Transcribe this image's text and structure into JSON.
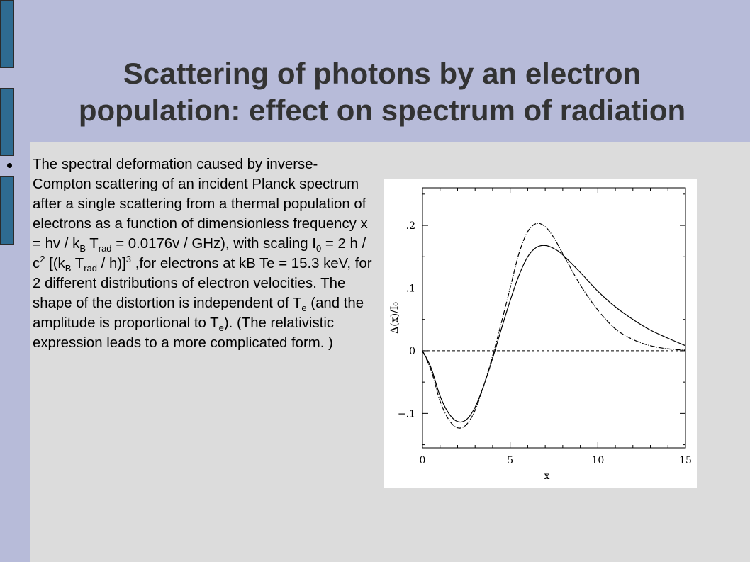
{
  "slide": {
    "title_line1": "Scattering of photons by an electron",
    "title_line2": "population: effect on spectrum of radiation"
  },
  "body_text": {
    "t1": "The spectral deformation caused by inverse-Compton scattering of an incident Planck spectrum after a single scattering from a thermal population of electrons as a function of dimensionless frequency x = hv / k",
    "sub1": "B",
    "t2": " T",
    "sub2": "rad",
    "t3": " = 0.0176v / GHz), with scaling I",
    "sub3": "0",
    "t4": " = 2 h / c",
    "sup1": "2",
    "t5": " [(k",
    "sub4": "B",
    "t6": " T",
    "sub5": "rad",
    "t7": " / h)]",
    "sup2": "3",
    "t8": " ,for electrons at kB Te = 15.3 keV, for 2 different distributions of electron velocities. The shape of the distortion is independent of T",
    "sub6": "e",
    "t9": " (and the amplitude is proportional to T",
    "sub7": "e",
    "t10": "). (The relativistic expression leads to a more complicated form. )"
  },
  "colors": {
    "title_band": "#b7bbd9",
    "content_bg": "#dcdcdc",
    "deco_bar": "#2e6b91",
    "title_text": "#333333"
  },
  "chart_data": {
    "type": "line",
    "xlabel": "x",
    "ylabel": "Δ(x)/I₀",
    "xlim": [
      0,
      15
    ],
    "ylim": [
      -0.155,
      0.26
    ],
    "x_ticks": [
      0,
      5,
      10,
      15
    ],
    "x_tick_labels": [
      "0",
      "5",
      "10",
      "15"
    ],
    "y_ticks": [
      -0.1,
      0,
      0.1,
      0.2
    ],
    "y_tick_labels": [
      "−.1",
      "0",
      ".1",
      ".2"
    ],
    "reference_line": {
      "y": 0,
      "style": "dashed"
    },
    "series": [
      {
        "style": "solid",
        "x": [
          0,
          0.5,
          1,
          1.5,
          2,
          2.5,
          3,
          3.5,
          4,
          4.5,
          5,
          5.5,
          6,
          6.5,
          7,
          7.5,
          8,
          9,
          10,
          11,
          12,
          13,
          14,
          15
        ],
        "y": [
          0,
          -0.028,
          -0.072,
          -0.1,
          -0.113,
          -0.11,
          -0.09,
          -0.055,
          -0.012,
          0.035,
          0.08,
          0.12,
          0.15,
          0.165,
          0.168,
          0.163,
          0.153,
          0.125,
          0.095,
          0.07,
          0.05,
          0.033,
          0.02,
          0.008
        ]
      },
      {
        "style": "dash-dot",
        "x": [
          0,
          0.5,
          1,
          1.5,
          2,
          2.5,
          3,
          3.5,
          4,
          4.5,
          5,
          5.5,
          6,
          6.5,
          7,
          7.5,
          8,
          9,
          10,
          11,
          12,
          13,
          14,
          15
        ],
        "y": [
          0,
          -0.032,
          -0.08,
          -0.11,
          -0.123,
          -0.118,
          -0.095,
          -0.055,
          -0.008,
          0.045,
          0.1,
          0.155,
          0.19,
          0.203,
          0.198,
          0.18,
          0.155,
          0.105,
          0.065,
          0.035,
          0.018,
          0.008,
          0.003,
          0.001
        ]
      }
    ]
  }
}
